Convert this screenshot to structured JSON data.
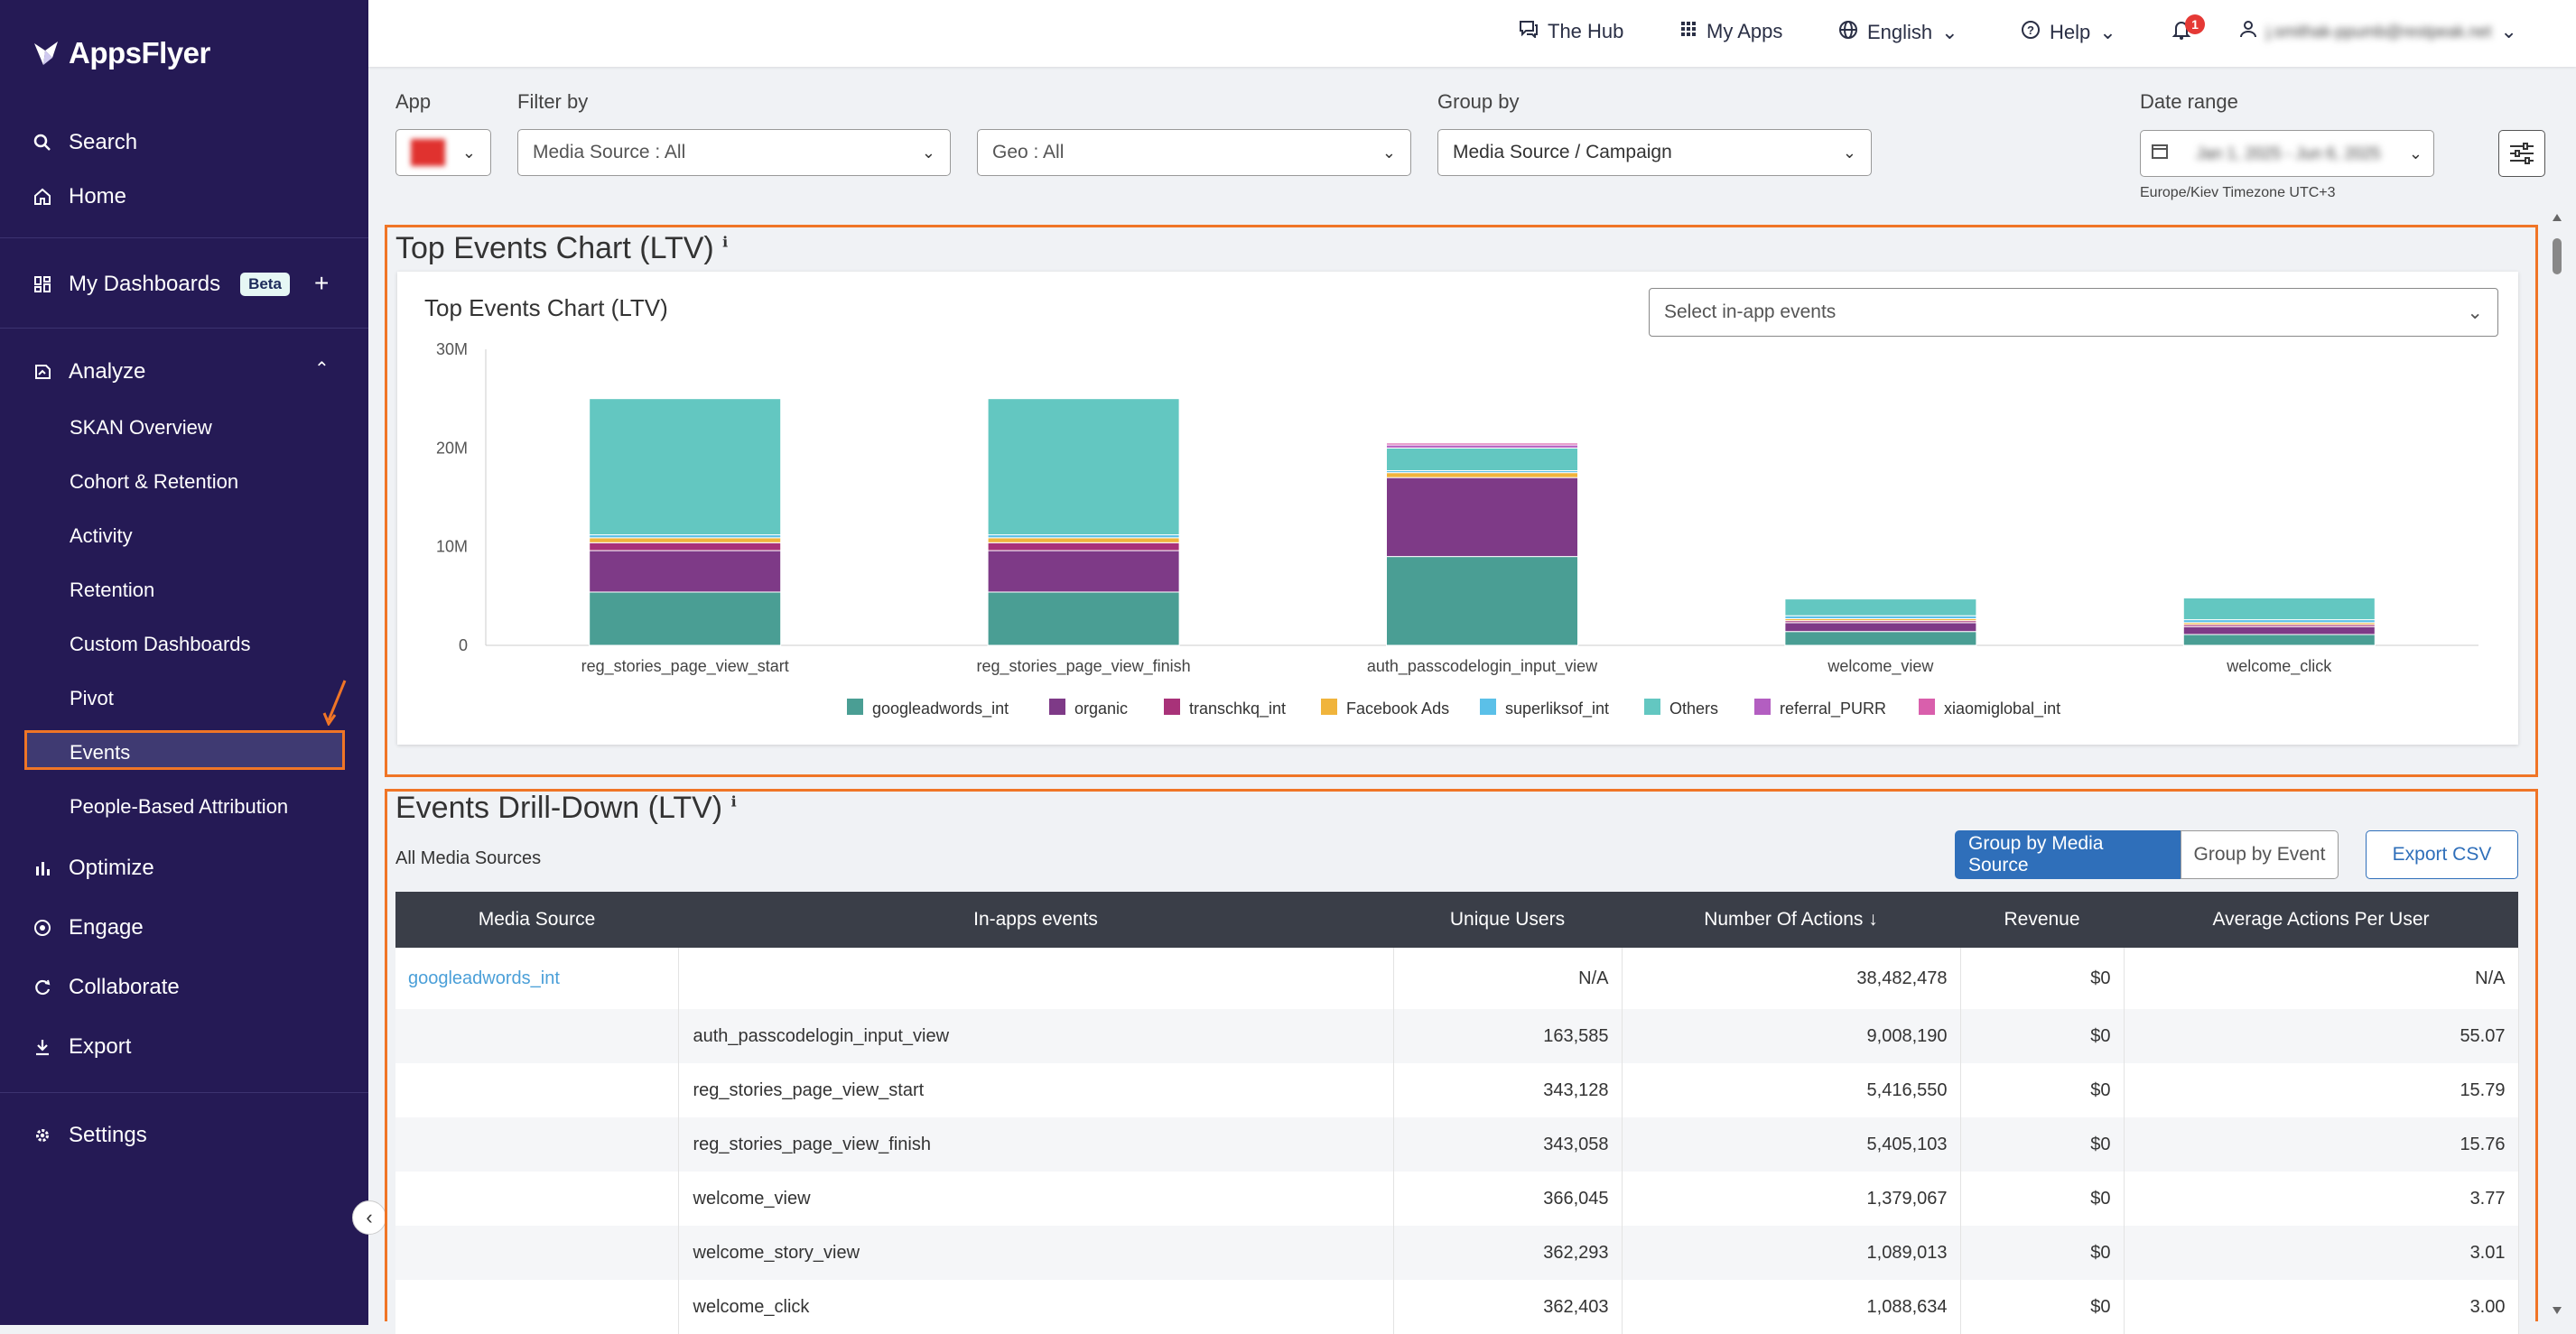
{
  "brand": {
    "name": "AppsFlyer"
  },
  "sidebar": {
    "search": "Search",
    "home": "Home",
    "my_dashboards": "My Dashboards",
    "beta": "Beta",
    "analyze": "Analyze",
    "analyze_items": [
      "SKAN Overview",
      "Cohort & Retention",
      "Activity",
      "Retention",
      "Custom Dashboards",
      "Pivot",
      "Events",
      "People-Based Attribution"
    ],
    "optimize": "Optimize",
    "engage": "Engage",
    "collaborate": "Collaborate",
    "export": "Export",
    "settings": "Settings"
  },
  "topbar": {
    "hub": "The Hub",
    "my_apps": "My Apps",
    "language": "English",
    "help": "Help",
    "notifications": "1",
    "user_email": "j.smithak-ppumb@restpeak.net"
  },
  "filters": {
    "app_label": "App",
    "filter_by_label": "Filter by",
    "media_source": "Media Source : All",
    "geo": "Geo : All",
    "group_by_label": "Group by",
    "group_by": "Media Source / Campaign",
    "date_range_label": "Date range",
    "date_range": "Jan 1, 2025 - Jun 6, 2025",
    "timezone": "Europe/Kiev Timezone UTC+3"
  },
  "top_events": {
    "section_title": "Top Events Chart (LTV)",
    "chart_title": "Top Events Chart (LTV)",
    "select_placeholder": "Select in-app events"
  },
  "chart_data": {
    "type": "bar",
    "stacked": true,
    "title": "Top Events Chart (LTV)",
    "categories": [
      "reg_stories_page_view_start",
      "reg_stories_page_view_finish",
      "auth_passcodelogin_input_view",
      "welcome_view",
      "welcome_click"
    ],
    "y_ticks": [
      "0",
      "10M",
      "20M",
      "30M"
    ],
    "ylim": [
      0,
      30000000
    ],
    "series": [
      {
        "name": "googleadwords_int",
        "color": "#4a9e94",
        "values": [
          5400000,
          5400000,
          9000000,
          1400000,
          1100000
        ]
      },
      {
        "name": "organic",
        "color": "#7e3a87",
        "values": [
          4200000,
          4200000,
          8000000,
          900000,
          800000
        ]
      },
      {
        "name": "transchkq_int",
        "color": "#a83279",
        "values": [
          800000,
          800000,
          0,
          200000,
          200000
        ]
      },
      {
        "name": "Facebook Ads",
        "color": "#f0b43c",
        "values": [
          500000,
          500000,
          500000,
          200000,
          200000
        ]
      },
      {
        "name": "superliksof_int",
        "color": "#5bc0e8",
        "values": [
          300000,
          300000,
          200000,
          300000,
          300000
        ]
      },
      {
        "name": "Others",
        "color": "#63c7c1",
        "values": [
          13800000,
          13800000,
          2300000,
          1700000,
          2200000
        ]
      },
      {
        "name": "referral_PURR",
        "color": "#b35ec1",
        "values": [
          0,
          0,
          300000,
          0,
          0
        ]
      },
      {
        "name": "xiaomiglobal_int",
        "color": "#d95fac",
        "values": [
          0,
          0,
          200000,
          0,
          0
        ]
      }
    ]
  },
  "drilldown": {
    "section_title": "Events Drill-Down (LTV)",
    "subtitle": "All Media Sources",
    "btn_group_ms": "Group by Media Source",
    "btn_group_event": "Group by Event",
    "btn_export": "Export CSV",
    "columns": [
      "Media Source",
      "In-apps events",
      "Unique Users",
      "Number Of Actions ↓",
      "Revenue",
      "Average Actions Per User"
    ],
    "rows": [
      [
        "googleadwords_int",
        "",
        "N/A",
        "38,482,478",
        "$0",
        "N/A"
      ],
      [
        "",
        "auth_passcodelogin_input_view",
        "163,585",
        "9,008,190",
        "$0",
        "55.07"
      ],
      [
        "",
        "reg_stories_page_view_start",
        "343,128",
        "5,416,550",
        "$0",
        "15.79"
      ],
      [
        "",
        "reg_stories_page_view_finish",
        "343,058",
        "5,405,103",
        "$0",
        "15.76"
      ],
      [
        "",
        "welcome_view",
        "366,045",
        "1,379,067",
        "$0",
        "3.77"
      ],
      [
        "",
        "welcome_story_view",
        "362,293",
        "1,089,013",
        "$0",
        "3.01"
      ],
      [
        "",
        "welcome_click",
        "362,403",
        "1,088,634",
        "$0",
        "3.00"
      ]
    ]
  }
}
